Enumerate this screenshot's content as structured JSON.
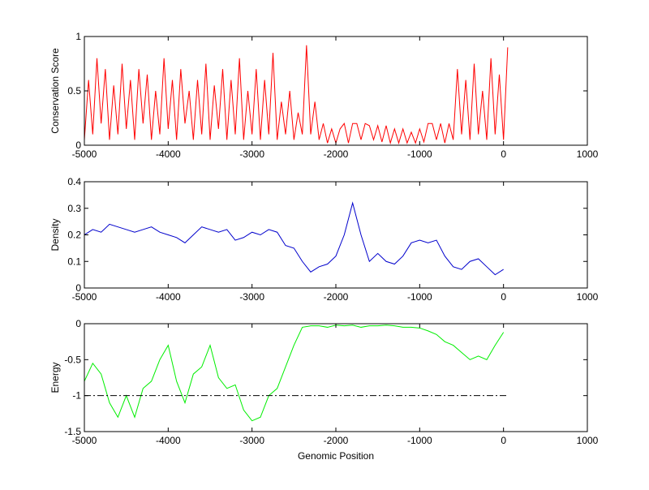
{
  "chart_data": [
    {
      "type": "line",
      "ylabel": "Conservation Score",
      "xlim": [
        -5000,
        1000
      ],
      "xticks": [
        -5000,
        -4000,
        -3000,
        -2000,
        -1000,
        0,
        1000
      ],
      "ylim": [
        0,
        1
      ],
      "yticks": [
        0,
        0.5,
        1
      ],
      "x": [
        -5000,
        -4950,
        -4900,
        -4850,
        -4800,
        -4750,
        -4700,
        -4650,
        -4600,
        -4550,
        -4500,
        -4450,
        -4400,
        -4350,
        -4300,
        -4250,
        -4200,
        -4150,
        -4100,
        -4050,
        -4000,
        -3950,
        -3900,
        -3850,
        -3800,
        -3750,
        -3700,
        -3650,
        -3600,
        -3550,
        -3500,
        -3450,
        -3400,
        -3350,
        -3300,
        -3250,
        -3200,
        -3150,
        -3100,
        -3050,
        -3000,
        -2950,
        -2900,
        -2850,
        -2800,
        -2750,
        -2700,
        -2650,
        -2600,
        -2550,
        -2500,
        -2450,
        -2400,
        -2350,
        -2300,
        -2250,
        -2200,
        -2150,
        -2100,
        -2050,
        -2000,
        -1950,
        -1900,
        -1850,
        -1800,
        -1750,
        -1700,
        -1650,
        -1600,
        -1550,
        -1500,
        -1450,
        -1400,
        -1350,
        -1300,
        -1250,
        -1200,
        -1150,
        -1100,
        -1050,
        -1000,
        -950,
        -900,
        -850,
        -800,
        -750,
        -700,
        -650,
        -600,
        -550,
        -500,
        -450,
        -400,
        -350,
        -300,
        -250,
        -200,
        -150,
        -100,
        -50,
        0,
        50
      ],
      "series": [
        {
          "color": "#ff0000",
          "values": [
            0.05,
            0.6,
            0.1,
            0.8,
            0.2,
            0.7,
            0.05,
            0.55,
            0.1,
            0.75,
            0.15,
            0.6,
            0.05,
            0.7,
            0.2,
            0.65,
            0.05,
            0.5,
            0.1,
            0.8,
            0.15,
            0.6,
            0.05,
            0.7,
            0.2,
            0.5,
            0.05,
            0.6,
            0.1,
            0.75,
            0.05,
            0.55,
            0.15,
            0.7,
            0.05,
            0.6,
            0.1,
            0.8,
            0.05,
            0.5,
            0.1,
            0.7,
            0.05,
            0.6,
            0.1,
            0.85,
            0.05,
            0.4,
            0.1,
            0.5,
            0.05,
            0.3,
            0.1,
            0.92,
            0.1,
            0.4,
            0.05,
            0.2,
            0.02,
            0.15,
            0.02,
            0.15,
            0.2,
            0.02,
            0.2,
            0.2,
            0.05,
            0.2,
            0.18,
            0.05,
            0.18,
            0.03,
            0.18,
            0.02,
            0.15,
            0.02,
            0.15,
            0.02,
            0.12,
            0.02,
            0.15,
            0.03,
            0.2,
            0.2,
            0.05,
            0.2,
            0.02,
            0.2,
            0.05,
            0.7,
            0.1,
            0.6,
            0.05,
            0.75,
            0.1,
            0.5,
            0.05,
            0.8,
            0.1,
            0.65,
            0.05,
            0.9
          ]
        }
      ]
    },
    {
      "type": "line",
      "ylabel": "Density",
      "xlim": [
        -5000,
        1000
      ],
      "xticks": [
        -5000,
        -4000,
        -3000,
        -2000,
        -1000,
        0,
        1000
      ],
      "ylim": [
        0,
        0.4
      ],
      "yticks": [
        0,
        0.1,
        0.2,
        0.3,
        0.4
      ],
      "x": [
        -5000,
        -4900,
        -4800,
        -4700,
        -4600,
        -4500,
        -4400,
        -4300,
        -4200,
        -4100,
        -4000,
        -3900,
        -3800,
        -3700,
        -3600,
        -3500,
        -3400,
        -3300,
        -3200,
        -3100,
        -3000,
        -2900,
        -2800,
        -2700,
        -2600,
        -2500,
        -2400,
        -2300,
        -2200,
        -2100,
        -2000,
        -1900,
        -1800,
        -1700,
        -1600,
        -1500,
        -1400,
        -1300,
        -1200,
        -1100,
        -1000,
        -900,
        -800,
        -700,
        -600,
        -500,
        -400,
        -300,
        -200,
        -100,
        0
      ],
      "series": [
        {
          "color": "#0000cc",
          "values": [
            0.2,
            0.22,
            0.21,
            0.24,
            0.23,
            0.22,
            0.21,
            0.22,
            0.23,
            0.21,
            0.2,
            0.19,
            0.17,
            0.2,
            0.23,
            0.22,
            0.21,
            0.22,
            0.18,
            0.19,
            0.21,
            0.2,
            0.22,
            0.21,
            0.16,
            0.15,
            0.1,
            0.06,
            0.08,
            0.09,
            0.12,
            0.2,
            0.32,
            0.2,
            0.1,
            0.13,
            0.1,
            0.09,
            0.12,
            0.17,
            0.18,
            0.17,
            0.18,
            0.12,
            0.08,
            0.07,
            0.1,
            0.11,
            0.08,
            0.05,
            0.07
          ]
        }
      ]
    },
    {
      "type": "line",
      "ylabel": "Energy",
      "xlabel": "Genomic Position",
      "xlim": [
        -5000,
        1000
      ],
      "xticks": [
        -5000,
        -4000,
        -3000,
        -2000,
        -1000,
        0,
        1000
      ],
      "ylim": [
        -1.5,
        0
      ],
      "yticks": [
        -1.5,
        -1,
        -0.5,
        0
      ],
      "x": [
        -5000,
        -4900,
        -4800,
        -4700,
        -4600,
        -4500,
        -4400,
        -4300,
        -4200,
        -4100,
        -4000,
        -3900,
        -3800,
        -3700,
        -3600,
        -3500,
        -3400,
        -3300,
        -3200,
        -3100,
        -3000,
        -2900,
        -2800,
        -2700,
        -2600,
        -2500,
        -2400,
        -2300,
        -2200,
        -2100,
        -2000,
        -1900,
        -1800,
        -1700,
        -1600,
        -1500,
        -1400,
        -1300,
        -1200,
        -1100,
        -1000,
        -900,
        -800,
        -700,
        -600,
        -500,
        -400,
        -300,
        -200,
        -100,
        0
      ],
      "series": [
        {
          "color": "#00ee00",
          "values": [
            -0.8,
            -0.55,
            -0.7,
            -1.1,
            -1.3,
            -1.0,
            -1.3,
            -0.9,
            -0.8,
            -0.5,
            -0.3,
            -0.8,
            -1.1,
            -0.7,
            -0.6,
            -0.3,
            -0.75,
            -0.9,
            -0.85,
            -1.2,
            -1.35,
            -1.3,
            -1.0,
            -0.9,
            -0.6,
            -0.3,
            -0.05,
            -0.03,
            -0.03,
            -0.05,
            -0.02,
            -0.03,
            -0.02,
            -0.05,
            -0.03,
            -0.03,
            -0.02,
            -0.03,
            -0.05,
            -0.05,
            -0.06,
            -0.1,
            -0.15,
            -0.25,
            -0.3,
            -0.4,
            -0.5,
            -0.45,
            -0.5,
            -0.3,
            -0.12
          ]
        }
      ],
      "reference_line": {
        "y": -1,
        "x": [
          -5000,
          50
        ],
        "color": "#000000",
        "style": "dashdot"
      }
    }
  ]
}
